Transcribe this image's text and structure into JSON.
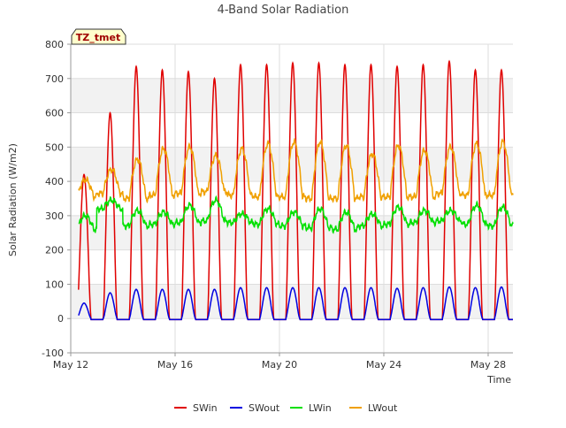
{
  "chart_data": {
    "type": "line",
    "title": "4-Band Solar Radiation",
    "xlabel": "Time",
    "ylabel": "Solar Radiation (W/m2)",
    "ylim": [
      -100,
      800
    ],
    "xlim": [
      0,
      16.95
    ],
    "yticks": [
      -100,
      0,
      100,
      200,
      300,
      400,
      500,
      600,
      700,
      800
    ],
    "xticks": [
      {
        "label": "May 12",
        "x": 0
      },
      {
        "label": "May 16",
        "x": 4
      },
      {
        "label": "May 20",
        "x": 8
      },
      {
        "label": "May 24",
        "x": 12
      },
      {
        "label": "May 28",
        "x": 16
      }
    ],
    "grid": true,
    "legend_position": "bottom",
    "site_label": "TZ_tmet",
    "day_model": {
      "start": 0.3,
      "end": 16.95,
      "sunrise": 0.24,
      "sunset": 0.78,
      "exponent": 1.5
    },
    "series": [
      {
        "name": "SWin",
        "color": "#e00000",
        "kind": "solar",
        "daily_peaks": [
          420,
          600,
          735,
          725,
          720,
          700,
          740,
          740,
          745,
          745,
          740,
          740,
          735,
          740,
          750,
          725,
          725
        ],
        "night": -3
      },
      {
        "name": "SWout",
        "color": "#0000e0",
        "kind": "solar",
        "daily_peaks": [
          45,
          75,
          85,
          85,
          85,
          85,
          90,
          90,
          90,
          90,
          90,
          90,
          88,
          90,
          92,
          90,
          92
        ],
        "night": -3
      },
      {
        "name": "LWin",
        "color": "#00e000",
        "kind": "thermal",
        "daily_base": [
          260,
          320,
          270,
          275,
          280,
          285,
          280,
          275,
          270,
          265,
          260,
          270,
          275,
          280,
          285,
          275,
          270
        ],
        "daily_amp": [
          40,
          25,
          45,
          35,
          50,
          60,
          25,
          45,
          40,
          55,
          50,
          35,
          50,
          35,
          30,
          55,
          55
        ]
      },
      {
        "name": "LWout",
        "color": "#f0a000",
        "kind": "thermal",
        "daily_base": [
          355,
          365,
          350,
          360,
          365,
          370,
          360,
          355,
          355,
          350,
          350,
          355,
          355,
          355,
          365,
          360,
          360
        ],
        "daily_amp": [
          50,
          70,
          115,
          135,
          135,
          105,
          135,
          155,
          160,
          165,
          155,
          125,
          150,
          135,
          135,
          150,
          155
        ]
      }
    ]
  }
}
